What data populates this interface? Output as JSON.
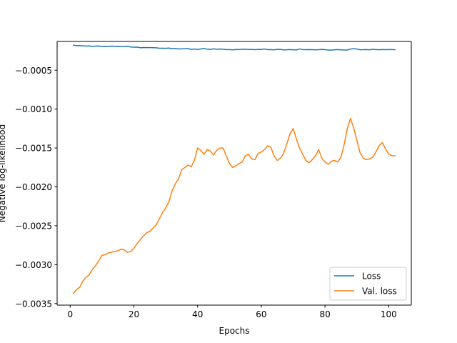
{
  "chart_data": {
    "type": "line",
    "title": "",
    "xlabel": "Epochs",
    "ylabel": "Negative log-likelihood",
    "xlim": [
      -4.1,
      107.1
    ],
    "ylim": [
      -0.00352,
      -0.00013
    ],
    "xticks": [
      0,
      20,
      40,
      60,
      80,
      100
    ],
    "xtick_labels": [
      "0",
      "20",
      "40",
      "60",
      "80",
      "100"
    ],
    "yticks": [
      -0.0035,
      -0.003,
      -0.0025,
      -0.002,
      -0.0015,
      -0.001,
      -0.0005
    ],
    "ytick_labels": [
      "−0.0035",
      "−0.0030",
      "−0.0025",
      "−0.0020",
      "−0.0015",
      "−0.0010",
      "−0.0005"
    ],
    "grid": false,
    "legend_position": "lower right",
    "x": [
      1,
      2,
      3,
      4,
      5,
      6,
      7,
      8,
      9,
      10,
      11,
      12,
      13,
      14,
      15,
      16,
      17,
      18,
      19,
      20,
      21,
      22,
      23,
      24,
      25,
      26,
      27,
      28,
      29,
      30,
      31,
      32,
      33,
      34,
      35,
      36,
      37,
      38,
      39,
      40,
      41,
      42,
      43,
      44,
      45,
      46,
      47,
      48,
      49,
      50,
      51,
      52,
      53,
      54,
      55,
      56,
      57,
      58,
      59,
      60,
      61,
      62,
      63,
      64,
      65,
      66,
      67,
      68,
      69,
      70,
      71,
      72,
      73,
      74,
      75,
      76,
      77,
      78,
      79,
      80,
      81,
      82,
      83,
      84,
      85,
      86,
      87,
      88,
      89,
      90,
      91,
      92,
      93,
      94,
      95,
      96,
      97,
      98,
      99,
      100,
      101,
      102
    ],
    "series": [
      {
        "name": "Loss",
        "color": "#1f77b4",
        "values": [
          -0.000178,
          -0.000184,
          -0.000183,
          -0.000186,
          -0.00019,
          -0.000188,
          -0.000192,
          -0.00019,
          -0.000189,
          -0.000196,
          -0.000193,
          -0.000194,
          -0.00019,
          -0.000193,
          -0.000192,
          -0.000195,
          -0.000197,
          -0.000193,
          -0.000201,
          -0.000203,
          -0.000202,
          -0.000211,
          -0.000208,
          -0.000209,
          -0.000209,
          -0.00021,
          -0.000212,
          -0.000217,
          -0.000217,
          -0.000218,
          -0.000215,
          -0.000223,
          -0.000221,
          -0.000226,
          -0.000225,
          -0.000224,
          -0.000222,
          -0.000232,
          -0.000228,
          -0.000232,
          -0.000226,
          -0.000222,
          -0.000229,
          -0.000232,
          -0.000225,
          -0.00023,
          -0.000228,
          -0.00023,
          -0.000234,
          -0.000235,
          -0.000238,
          -0.000233,
          -0.000235,
          -0.000231,
          -0.00023,
          -0.000233,
          -0.000233,
          -0.000236,
          -0.000232,
          -0.000233,
          -0.000226,
          -0.000236,
          -0.000234,
          -0.000238,
          -0.000231,
          -0.000232,
          -0.000239,
          -0.000237,
          -0.000234,
          -0.000237,
          -0.00024,
          -0.000227,
          -0.000234,
          -0.000236,
          -0.000234,
          -0.000236,
          -0.000238,
          -0.000236,
          -0.000233,
          -0.000235,
          -0.000241,
          -0.000241,
          -0.000237,
          -0.000235,
          -0.000238,
          -0.00024,
          -0.00024,
          -0.000228,
          -0.000223,
          -0.000227,
          -0.000237,
          -0.000236,
          -0.000234,
          -0.000237,
          -0.000232,
          -0.000234,
          -0.000237,
          -0.000233,
          -0.000236,
          -0.000234,
          -0.000235,
          -0.000237
        ]
      },
      {
        "name": "Val. loss",
        "color": "#ff7f0e",
        "values": [
          -0.00337,
          -0.00332,
          -0.00329,
          -0.00321,
          -0.00316,
          -0.00313,
          -0.00306,
          -0.00301,
          -0.00295,
          -0.00288,
          -0.00287,
          -0.00285,
          -0.00284,
          -0.00283,
          -0.00282,
          -0.0028,
          -0.00281,
          -0.00284,
          -0.00283,
          -0.00279,
          -0.00273,
          -0.00268,
          -0.00263,
          -0.00259,
          -0.00257,
          -0.00253,
          -0.00249,
          -0.00241,
          -0.00233,
          -0.00227,
          -0.00219,
          -0.00205,
          -0.00196,
          -0.0019,
          -0.00178,
          -0.00175,
          -0.00172,
          -0.00174,
          -0.00166,
          -0.0015,
          -0.00153,
          -0.00158,
          -0.00152,
          -0.00154,
          -0.00159,
          -0.00153,
          -0.0015,
          -0.0015,
          -0.0016,
          -0.0017,
          -0.00175,
          -0.00173,
          -0.0017,
          -0.00168,
          -0.0016,
          -0.00158,
          -0.00164,
          -0.00165,
          -0.00157,
          -0.00155,
          -0.00152,
          -0.00147,
          -0.00149,
          -0.0016,
          -0.00166,
          -0.00163,
          -0.00157,
          -0.00145,
          -0.00132,
          -0.00125,
          -0.00138,
          -0.0015,
          -0.00158,
          -0.00166,
          -0.00169,
          -0.00165,
          -0.0016,
          -0.00152,
          -0.00163,
          -0.00168,
          -0.00171,
          -0.00167,
          -0.00166,
          -0.00168,
          -0.00162,
          -0.00146,
          -0.00125,
          -0.00112,
          -0.00124,
          -0.0014,
          -0.00156,
          -0.00163,
          -0.00165,
          -0.00164,
          -0.00162,
          -0.00155,
          -0.00147,
          -0.00143,
          -0.00151,
          -0.00158,
          -0.0016,
          -0.0016
        ]
      }
    ]
  }
}
